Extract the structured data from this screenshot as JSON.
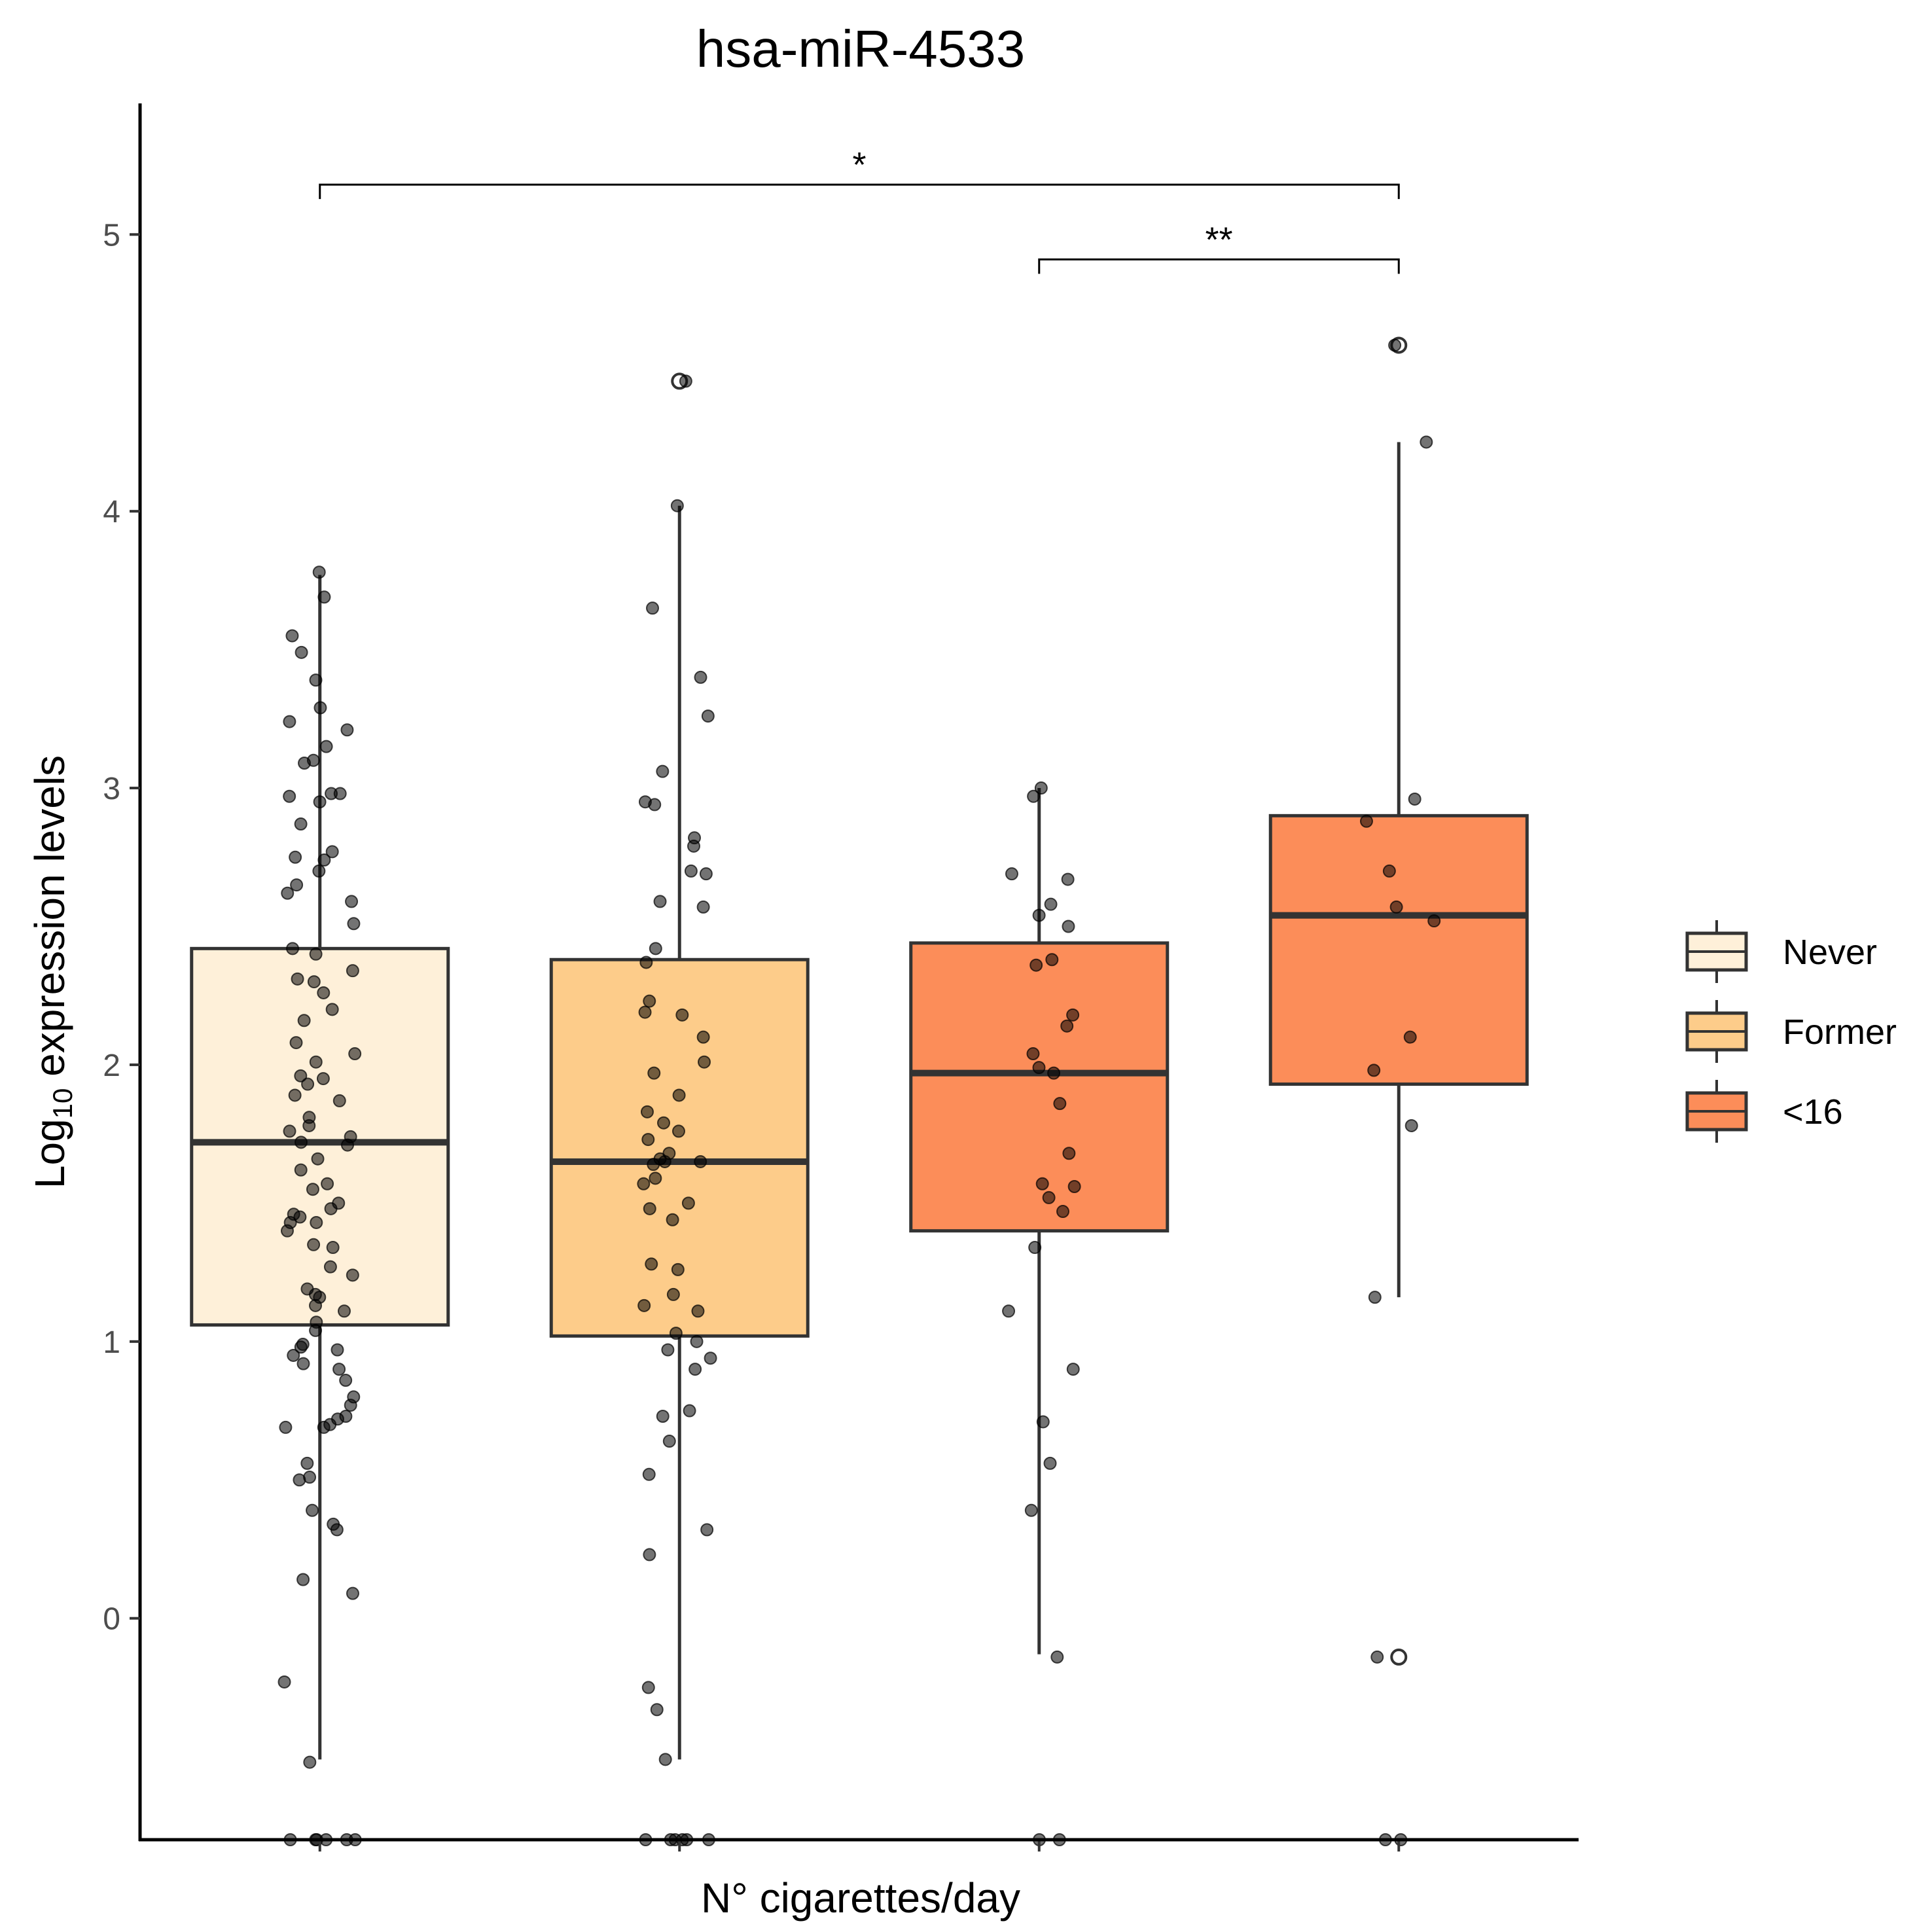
{
  "chart_data": {
    "type": "box",
    "title": "hsa-miR-4533",
    "xlabel": "N° cigarettes/day",
    "ylabel_main": "Log",
    "ylabel_sub": "10",
    "ylabel_rest": " expression levels",
    "ylim": [
      -0.8,
      5.45
    ],
    "yticks": [
      0,
      1,
      2,
      3,
      4,
      5
    ],
    "grid": false,
    "legend_position": "right",
    "groups": [
      {
        "name": "Never",
        "color": "#FEF0D9",
        "box": {
          "lower_whisker": -0.51,
          "q1": 1.06,
          "median": 1.72,
          "q3": 2.42,
          "upper_whisker": 3.77
        },
        "outliers": [],
        "points": [
          3.78,
          3.69,
          3.55,
          3.49,
          3.39,
          3.29,
          3.24,
          3.21,
          3.15,
          3.1,
          3.09,
          2.98,
          2.98,
          2.97,
          2.95,
          2.87,
          2.77,
          2.75,
          2.74,
          2.7,
          2.65,
          2.62,
          2.59,
          2.51,
          2.42,
          2.4,
          2.34,
          2.31,
          2.3,
          2.26,
          2.2,
          2.16,
          2.08,
          2.04,
          2.01,
          1.96,
          1.95,
          1.93,
          1.89,
          1.87,
          1.81,
          1.78,
          1.76,
          1.74,
          1.72,
          1.71,
          1.66,
          1.62,
          1.57,
          1.55,
          1.5,
          1.48,
          1.46,
          1.45,
          1.43,
          1.43,
          1.4,
          1.35,
          1.34,
          1.27,
          1.24,
          1.19,
          1.17,
          1.16,
          1.13,
          1.11,
          1.07,
          1.04,
          0.99,
          0.98,
          0.97,
          0.95,
          0.92,
          0.9,
          0.86,
          0.8,
          0.77,
          0.73,
          0.72,
          0.7,
          0.69,
          0.69,
          0.56,
          0.51,
          0.5,
          0.39,
          0.34,
          0.32,
          0.14,
          0.09,
          -0.23,
          -0.52,
          -0.8,
          -0.8,
          -0.8,
          -0.8,
          -0.8,
          -0.8
        ]
      },
      {
        "name": "Former",
        "color": "#FDCC8A",
        "box": {
          "lower_whisker": -0.51,
          "q1": 1.02,
          "median": 1.65,
          "q3": 2.38,
          "upper_whisker": 4.02
        },
        "outliers": [
          4.47
        ],
        "points": [
          4.47,
          4.02,
          3.65,
          3.4,
          3.26,
          3.06,
          2.95,
          2.94,
          2.82,
          2.79,
          2.7,
          2.69,
          2.59,
          2.57,
          2.42,
          2.37,
          2.23,
          2.19,
          2.18,
          2.1,
          2.01,
          1.97,
          1.89,
          1.83,
          1.79,
          1.76,
          1.73,
          1.68,
          1.66,
          1.65,
          1.65,
          1.64,
          1.59,
          1.57,
          1.5,
          1.48,
          1.44,
          1.28,
          1.26,
          1.17,
          1.13,
          1.11,
          1.03,
          1.0,
          0.97,
          0.94,
          0.9,
          0.75,
          0.73,
          0.64,
          0.52,
          0.32,
          0.23,
          -0.25,
          -0.33,
          -0.51,
          -0.8,
          -0.8,
          -0.8,
          -0.8,
          -0.8,
          -0.8
        ]
      },
      {
        "name": "<16",
        "color": "#FC8D59",
        "box": {
          "lower_whisker": -0.13,
          "q1": 1.4,
          "median": 1.97,
          "q3": 2.44,
          "upper_whisker": 3.0
        },
        "outliers": [],
        "points": [
          3.0,
          2.97,
          2.69,
          2.67,
          2.58,
          2.54,
          2.5,
          2.38,
          2.36,
          2.18,
          2.14,
          2.04,
          1.99,
          1.97,
          1.86,
          1.68,
          1.57,
          1.56,
          1.52,
          1.47,
          1.34,
          1.11,
          0.9,
          0.71,
          0.56,
          0.39,
          -0.14,
          -0.8,
          -0.8
        ]
      },
      {
        "name": "",
        "color": "#FC8D59",
        "box": {
          "lower_whisker": 1.16,
          "q1": 1.93,
          "median": 2.54,
          "q3": 2.9,
          "upper_whisker": 4.25
        },
        "outliers": [
          4.6,
          -0.14
        ],
        "points": [
          4.6,
          4.25,
          2.96,
          2.88,
          2.7,
          2.57,
          2.52,
          2.1,
          1.98,
          1.78,
          1.16,
          -0.14,
          -0.8,
          -0.8
        ]
      }
    ],
    "comparisons": [
      {
        "from": 0,
        "to": 3,
        "label": "*"
      },
      {
        "from": 2,
        "to": 3,
        "label": "**"
      }
    ]
  },
  "legend": {
    "items": [
      {
        "label": "Never",
        "color": "#FEF0D9"
      },
      {
        "label": "Former",
        "color": "#FDCC8A"
      },
      {
        "label": "<16",
        "color": "#FC8D59"
      }
    ]
  }
}
